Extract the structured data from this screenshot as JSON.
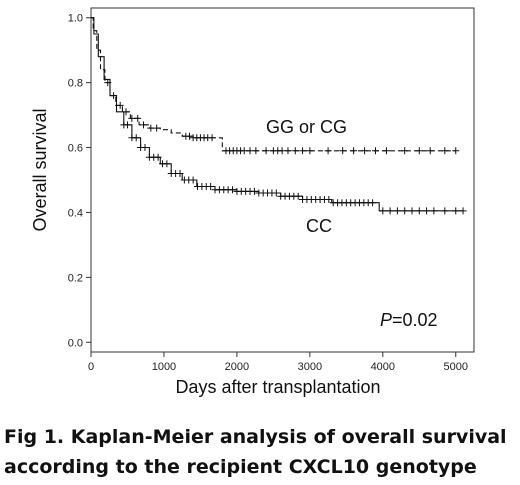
{
  "chart_data": {
    "type": "line",
    "title": "",
    "xlabel": "Days after transplantation",
    "ylabel": "Overall survival",
    "xlim": [
      0,
      5250
    ],
    "ylim": [
      -0.03,
      1.03
    ],
    "x_ticks": [
      "0",
      "1000",
      "2000",
      "3000",
      "4000",
      "5000"
    ],
    "y_ticks": [
      "0.0",
      "0.2",
      "0.4",
      "0.6",
      "0.8",
      "1.0"
    ],
    "annotation": {
      "italic": "P",
      "rest": "=0.02"
    },
    "series": [
      {
        "name": "GG or CG",
        "style": "dashed",
        "steps": [
          [
            0,
            1.0
          ],
          [
            30,
            0.96
          ],
          [
            80,
            0.9
          ],
          [
            130,
            0.84
          ],
          [
            190,
            0.8
          ],
          [
            260,
            0.76
          ],
          [
            340,
            0.73
          ],
          [
            430,
            0.71
          ],
          [
            540,
            0.69
          ],
          [
            660,
            0.67
          ],
          [
            800,
            0.66
          ],
          [
            950,
            0.655
          ],
          [
            1100,
            0.645
          ],
          [
            1250,
            0.635
          ],
          [
            1400,
            0.63
          ],
          [
            1750,
            0.63
          ],
          [
            1800,
            0.59
          ],
          [
            5000,
            0.59
          ]
        ],
        "censor_x": [
          230,
          310,
          400,
          480,
          560,
          640,
          720,
          820,
          900,
          1300,
          1350,
          1400,
          1450,
          1500,
          1550,
          1600,
          1660,
          1850,
          1900,
          1950,
          2000,
          2050,
          2100,
          2180,
          2260,
          2400,
          2500,
          2560,
          2620,
          2700,
          2800,
          2900,
          3000,
          3250,
          3450,
          3600,
          3750,
          3900,
          4050,
          4300,
          4500,
          4650,
          4850,
          5000
        ]
      },
      {
        "name": "CC",
        "style": "solid",
        "steps": [
          [
            0,
            1.0
          ],
          [
            40,
            0.95
          ],
          [
            100,
            0.88
          ],
          [
            180,
            0.81
          ],
          [
            260,
            0.76
          ],
          [
            350,
            0.71
          ],
          [
            450,
            0.67
          ],
          [
            560,
            0.63
          ],
          [
            680,
            0.6
          ],
          [
            800,
            0.57
          ],
          [
            950,
            0.55
          ],
          [
            1100,
            0.52
          ],
          [
            1250,
            0.5
          ],
          [
            1450,
            0.48
          ],
          [
            1700,
            0.47
          ],
          [
            2000,
            0.465
          ],
          [
            2300,
            0.46
          ],
          [
            2600,
            0.45
          ],
          [
            2900,
            0.44
          ],
          [
            3300,
            0.43
          ],
          [
            3900,
            0.43
          ],
          [
            3950,
            0.405
          ],
          [
            5100,
            0.405
          ]
        ],
        "censor_x": [
          450,
          500,
          560,
          620,
          680,
          740,
          800,
          860,
          920,
          980,
          1040,
          1100,
          1160,
          1220,
          1280,
          1340,
          1400,
          1460,
          1520,
          1580,
          1640,
          1700,
          1760,
          1820,
          1880,
          1940,
          2000,
          2060,
          2120,
          2180,
          2240,
          2300,
          2360,
          2420,
          2480,
          2540,
          2600,
          2660,
          2720,
          2780,
          2840,
          2900,
          2960,
          3020,
          3080,
          3140,
          3200,
          3260,
          3320,
          3380,
          3440,
          3500,
          3560,
          3620,
          3680,
          3740,
          3800,
          3860,
          4000,
          4100,
          4200,
          4300,
          4400,
          4500,
          4600,
          4700,
          4850,
          5000,
          5100
        ]
      }
    ]
  },
  "caption": {
    "line1": "Fig 1. Kaplan-Meier analysis of overall survival",
    "line2": "according to the recipient CXCL10 genotype"
  }
}
